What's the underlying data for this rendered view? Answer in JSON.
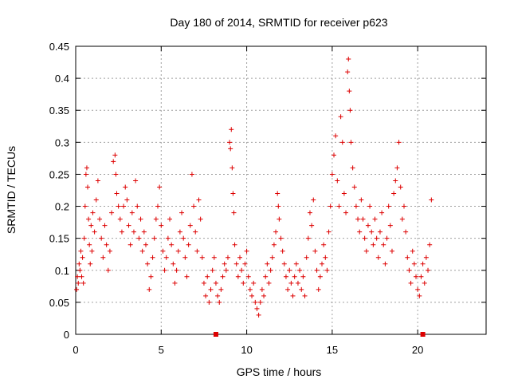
{
  "chart_data": {
    "type": "scatter",
    "title": "Day 180 of 2014, SRMTID for receiver p623",
    "xlabel": "GPS time / hours",
    "ylabel": "SRMTID / TECUs",
    "xlim": [
      0,
      24
    ],
    "ylim": [
      0,
      0.45
    ],
    "xticks": [
      0,
      5,
      10,
      15,
      20
    ],
    "xtick_labels": [
      "0",
      "5",
      "10",
      "15",
      "20"
    ],
    "yticks": [
      0,
      0.05,
      0.1,
      0.15,
      0.2,
      0.25,
      0.3,
      0.35,
      0.4,
      0.45
    ],
    "ytick_labels": [
      "0",
      "0.05",
      "0.1",
      "0.15",
      "0.2",
      "0.25",
      "0.3",
      "0.35",
      "0.4",
      "0.45"
    ],
    "grid": true,
    "marker": "plus",
    "color": "#dd0000",
    "series": [
      {
        "name": "SRMTID",
        "points": [
          [
            0.05,
            0.07
          ],
          [
            0.1,
            0.09
          ],
          [
            0.15,
            0.08
          ],
          [
            0.2,
            0.11
          ],
          [
            0.25,
            0.1
          ],
          [
            0.3,
            0.13
          ],
          [
            0.35,
            0.09
          ],
          [
            0.4,
            0.12
          ],
          [
            0.45,
            0.08
          ],
          [
            0.5,
            0.15
          ],
          [
            0.55,
            0.2
          ],
          [
            0.6,
            0.25
          ],
          [
            0.65,
            0.26
          ],
          [
            0.7,
            0.23
          ],
          [
            0.75,
            0.18
          ],
          [
            0.8,
            0.14
          ],
          [
            0.85,
            0.11
          ],
          [
            0.9,
            0.17
          ],
          [
            0.95,
            0.13
          ],
          [
            1.0,
            0.19
          ],
          [
            1.1,
            0.16
          ],
          [
            1.2,
            0.21
          ],
          [
            1.3,
            0.24
          ],
          [
            1.4,
            0.18
          ],
          [
            1.5,
            0.15
          ],
          [
            1.6,
            0.12
          ],
          [
            1.7,
            0.17
          ],
          [
            1.8,
            0.14
          ],
          [
            1.9,
            0.1
          ],
          [
            2.0,
            0.13
          ],
          [
            2.1,
            0.19
          ],
          [
            2.2,
            0.27
          ],
          [
            2.3,
            0.28
          ],
          [
            2.35,
            0.25
          ],
          [
            2.4,
            0.22
          ],
          [
            2.5,
            0.2
          ],
          [
            2.6,
            0.18
          ],
          [
            2.7,
            0.16
          ],
          [
            2.8,
            0.2
          ],
          [
            2.9,
            0.23
          ],
          [
            3.0,
            0.21
          ],
          [
            3.1,
            0.17
          ],
          [
            3.2,
            0.14
          ],
          [
            3.3,
            0.19
          ],
          [
            3.4,
            0.16
          ],
          [
            3.5,
            0.24
          ],
          [
            3.6,
            0.2
          ],
          [
            3.7,
            0.15
          ],
          [
            3.8,
            0.18
          ],
          [
            3.9,
            0.13
          ],
          [
            4.0,
            0.16
          ],
          [
            4.1,
            0.14
          ],
          [
            4.2,
            0.11
          ],
          [
            4.3,
            0.07
          ],
          [
            4.4,
            0.09
          ],
          [
            4.5,
            0.12
          ],
          [
            4.6,
            0.15
          ],
          [
            4.7,
            0.18
          ],
          [
            4.8,
            0.2
          ],
          [
            4.9,
            0.23
          ],
          [
            5.0,
            0.17
          ],
          [
            5.1,
            0.13
          ],
          [
            5.2,
            0.1
          ],
          [
            5.3,
            0.12
          ],
          [
            5.4,
            0.15
          ],
          [
            5.5,
            0.18
          ],
          [
            5.6,
            0.14
          ],
          [
            5.7,
            0.11
          ],
          [
            5.8,
            0.08
          ],
          [
            5.9,
            0.1
          ],
          [
            6.0,
            0.13
          ],
          [
            6.1,
            0.16
          ],
          [
            6.2,
            0.19
          ],
          [
            6.3,
            0.15
          ],
          [
            6.4,
            0.12
          ],
          [
            6.5,
            0.09
          ],
          [
            6.6,
            0.14
          ],
          [
            6.7,
            0.17
          ],
          [
            6.8,
            0.25
          ],
          [
            6.9,
            0.2
          ],
          [
            7.0,
            0.16
          ],
          [
            7.1,
            0.13
          ],
          [
            7.2,
            0.21
          ],
          [
            7.3,
            0.18
          ],
          [
            7.4,
            0.12
          ],
          [
            7.5,
            0.08
          ],
          [
            7.6,
            0.06
          ],
          [
            7.7,
            0.09
          ],
          [
            7.8,
            0.05
          ],
          [
            7.9,
            0.07
          ],
          [
            8.0,
            0.1
          ],
          [
            8.1,
            0.12
          ],
          [
            8.2,
            0.08
          ],
          [
            8.3,
            0.06
          ],
          [
            8.4,
            0.05
          ],
          [
            8.5,
            0.07
          ],
          [
            8.6,
            0.09
          ],
          [
            8.7,
            0.11
          ],
          [
            8.8,
            0.1
          ],
          [
            8.9,
            0.12
          ],
          [
            9.0,
            0.3
          ],
          [
            9.05,
            0.29
          ],
          [
            9.1,
            0.32
          ],
          [
            9.15,
            0.26
          ],
          [
            9.2,
            0.22
          ],
          [
            9.25,
            0.19
          ],
          [
            9.3,
            0.14
          ],
          [
            9.4,
            0.11
          ],
          [
            9.5,
            0.09
          ],
          [
            9.6,
            0.12
          ],
          [
            9.7,
            0.1
          ],
          [
            9.8,
            0.08
          ],
          [
            9.9,
            0.11
          ],
          [
            10.0,
            0.13
          ],
          [
            10.1,
            0.09
          ],
          [
            10.2,
            0.07
          ],
          [
            10.3,
            0.06
          ],
          [
            10.4,
            0.08
          ],
          [
            10.5,
            0.05
          ],
          [
            10.6,
            0.04
          ],
          [
            10.7,
            0.03
          ],
          [
            10.8,
            0.05
          ],
          [
            10.9,
            0.07
          ],
          [
            11.0,
            0.06
          ],
          [
            11.1,
            0.09
          ],
          [
            11.2,
            0.11
          ],
          [
            11.3,
            0.08
          ],
          [
            11.4,
            0.1
          ],
          [
            11.5,
            0.12
          ],
          [
            11.6,
            0.14
          ],
          [
            11.7,
            0.16
          ],
          [
            11.8,
            0.22
          ],
          [
            11.85,
            0.2
          ],
          [
            11.9,
            0.18
          ],
          [
            12.0,
            0.15
          ],
          [
            12.1,
            0.13
          ],
          [
            12.2,
            0.11
          ],
          [
            12.3,
            0.09
          ],
          [
            12.4,
            0.07
          ],
          [
            12.5,
            0.1
          ],
          [
            12.6,
            0.08
          ],
          [
            12.7,
            0.06
          ],
          [
            12.8,
            0.09
          ],
          [
            12.9,
            0.11
          ],
          [
            13.0,
            0.08
          ],
          [
            13.1,
            0.1
          ],
          [
            13.2,
            0.07
          ],
          [
            13.3,
            0.09
          ],
          [
            13.4,
            0.06
          ],
          [
            13.5,
            0.12
          ],
          [
            13.6,
            0.15
          ],
          [
            13.7,
            0.19
          ],
          [
            13.8,
            0.17
          ],
          [
            13.9,
            0.21
          ],
          [
            14.0,
            0.13
          ],
          [
            14.1,
            0.1
          ],
          [
            14.2,
            0.07
          ],
          [
            14.3,
            0.09
          ],
          [
            14.4,
            0.11
          ],
          [
            14.5,
            0.14
          ],
          [
            14.6,
            0.12
          ],
          [
            14.7,
            0.1
          ],
          [
            14.8,
            0.16
          ],
          [
            14.9,
            0.2
          ],
          [
            15.0,
            0.25
          ],
          [
            15.1,
            0.28
          ],
          [
            15.2,
            0.31
          ],
          [
            15.3,
            0.24
          ],
          [
            15.4,
            0.2
          ],
          [
            15.5,
            0.34
          ],
          [
            15.6,
            0.3
          ],
          [
            15.7,
            0.22
          ],
          [
            15.8,
            0.19
          ],
          [
            15.9,
            0.41
          ],
          [
            15.95,
            0.43
          ],
          [
            16.0,
            0.38
          ],
          [
            16.05,
            0.35
          ],
          [
            16.1,
            0.3
          ],
          [
            16.2,
            0.26
          ],
          [
            16.3,
            0.23
          ],
          [
            16.4,
            0.2
          ],
          [
            16.5,
            0.18
          ],
          [
            16.6,
            0.16
          ],
          [
            16.7,
            0.21
          ],
          [
            16.8,
            0.18
          ],
          [
            16.9,
            0.15
          ],
          [
            17.0,
            0.13
          ],
          [
            17.1,
            0.17
          ],
          [
            17.2,
            0.2
          ],
          [
            17.3,
            0.16
          ],
          [
            17.4,
            0.14
          ],
          [
            17.5,
            0.18
          ],
          [
            17.6,
            0.15
          ],
          [
            17.7,
            0.12
          ],
          [
            17.8,
            0.16
          ],
          [
            17.9,
            0.19
          ],
          [
            18.0,
            0.14
          ],
          [
            18.1,
            0.11
          ],
          [
            18.2,
            0.15
          ],
          [
            18.3,
            0.2
          ],
          [
            18.4,
            0.17
          ],
          [
            18.5,
            0.13
          ],
          [
            18.6,
            0.22
          ],
          [
            18.7,
            0.24
          ],
          [
            18.8,
            0.26
          ],
          [
            18.9,
            0.3
          ],
          [
            19.0,
            0.23
          ],
          [
            19.1,
            0.18
          ],
          [
            19.2,
            0.2
          ],
          [
            19.3,
            0.16
          ],
          [
            19.4,
            0.12
          ],
          [
            19.5,
            0.1
          ],
          [
            19.6,
            0.08
          ],
          [
            19.7,
            0.13
          ],
          [
            19.8,
            0.11
          ],
          [
            19.9,
            0.09
          ],
          [
            20.0,
            0.07
          ],
          [
            20.1,
            0.06
          ],
          [
            20.2,
            0.09
          ],
          [
            20.3,
            0.11
          ],
          [
            20.4,
            0.08
          ],
          [
            20.5,
            0.12
          ],
          [
            20.6,
            0.1
          ],
          [
            20.7,
            0.14
          ],
          [
            20.8,
            0.21
          ]
        ]
      }
    ],
    "axis_markers": [
      {
        "x": 8.2,
        "y": 0
      },
      {
        "x": 20.3,
        "y": 0
      }
    ]
  }
}
